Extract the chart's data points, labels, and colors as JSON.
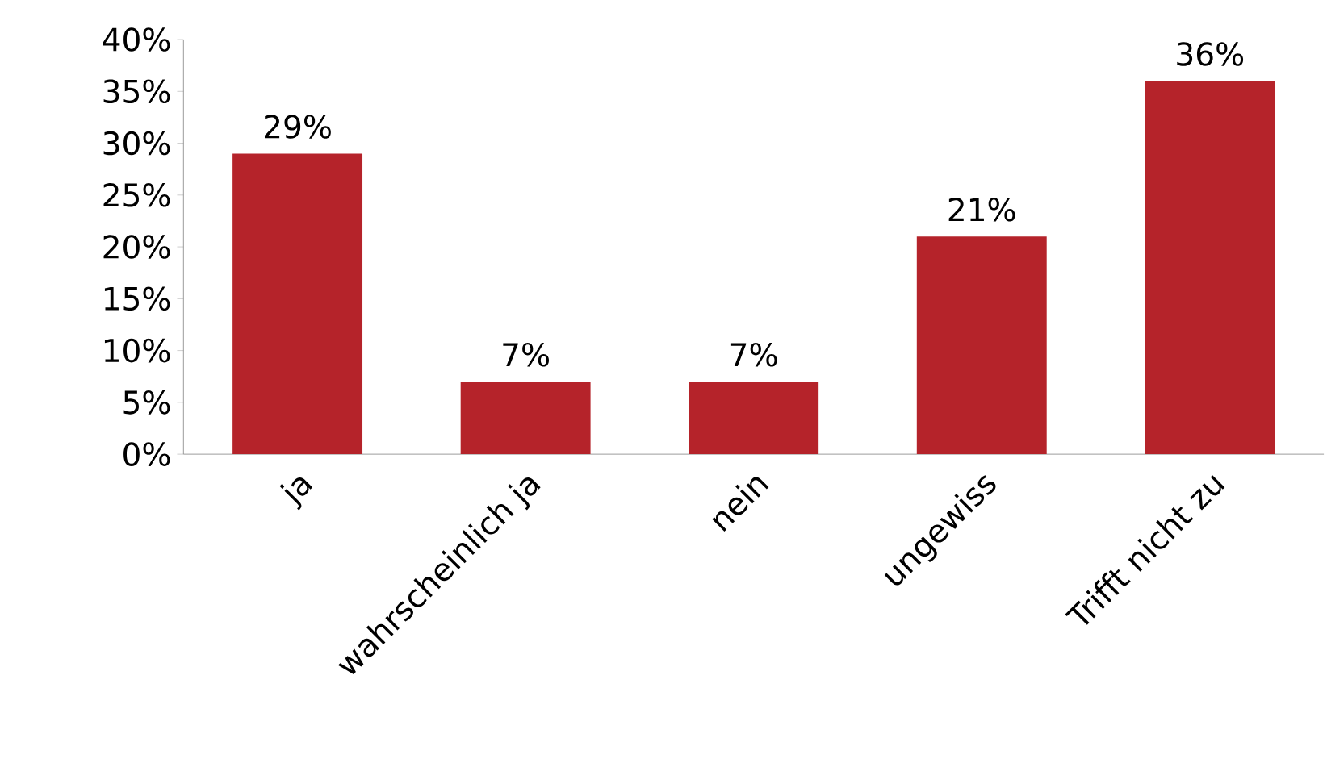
{
  "chart_data": {
    "type": "bar",
    "categories": [
      "ja",
      "wahrscheinlich ja",
      "nein",
      "ungewiss",
      "Trifft nicht zu"
    ],
    "values": [
      29,
      7,
      7,
      21,
      36
    ],
    "value_labels": [
      "29%",
      "7%",
      "7%",
      "21%",
      "36%"
    ],
    "color": "#b5232a",
    "ylim": [
      0,
      40
    ],
    "yticks": [
      {
        "value": 0,
        "label": "0%"
      },
      {
        "value": 5,
        "label": "5%"
      },
      {
        "value": 10,
        "label": "10%"
      },
      {
        "value": 15,
        "label": "15%"
      },
      {
        "value": 20,
        "label": "20%"
      },
      {
        "value": 25,
        "label": "25%"
      },
      {
        "value": 30,
        "label": "30%"
      },
      {
        "value": 35,
        "label": "35%"
      },
      {
        "value": 40,
        "label": "40%"
      }
    ],
    "grid": false
  }
}
